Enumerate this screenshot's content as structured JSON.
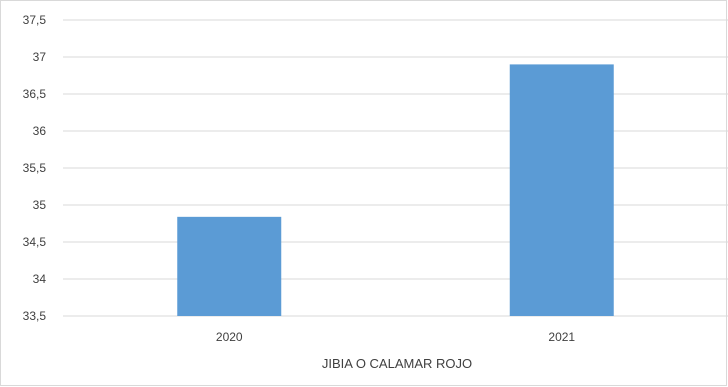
{
  "chart_data": {
    "type": "bar",
    "categories": [
      "2020",
      "2021"
    ],
    "values": [
      34.84,
      36.9
    ],
    "ylim": [
      33.5,
      37.5
    ],
    "yticks": [
      "33,5",
      "34",
      "34,5",
      "35",
      "35,5",
      "36",
      "36,5",
      "37",
      "37,5"
    ],
    "ytick_values": [
      33.5,
      34,
      34.5,
      35,
      35.5,
      36,
      36.5,
      37,
      37.5
    ],
    "xlabel": "JIBIA O CALAMAR ROJO",
    "ylabel": "",
    "title": "",
    "grid": true,
    "bar_color": "#5b9bd5",
    "grid_color": "#d9d9d9"
  }
}
